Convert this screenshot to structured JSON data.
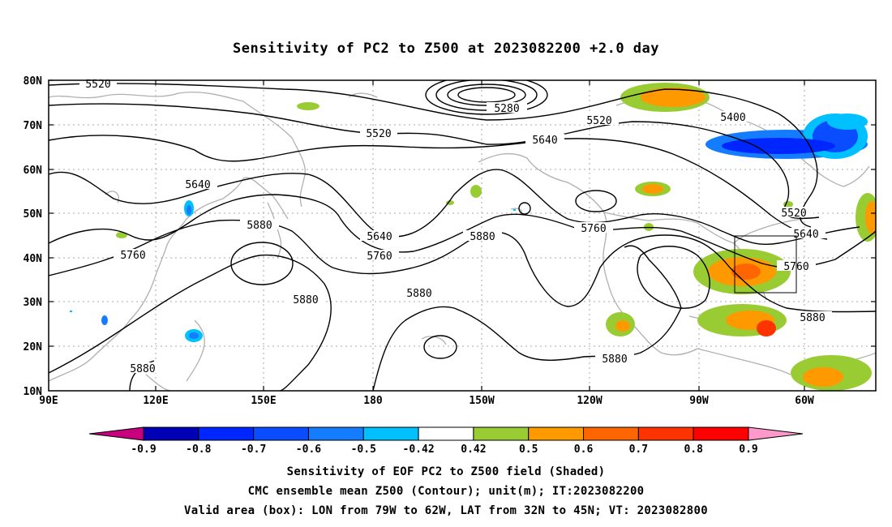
{
  "title": "Sensitivity of PC2 to Z500 at 2023082200 +2.0 day",
  "map": {
    "lat_ticks": [
      "80N",
      "70N",
      "60N",
      "50N",
      "40N",
      "30N",
      "20N",
      "10N"
    ],
    "lon_ticks": [
      "90E",
      "120E",
      "150E",
      "180",
      "150W",
      "120W",
      "90W",
      "60W"
    ],
    "lat_range": [
      10,
      80
    ],
    "lon_range_east": [
      90,
      322
    ],
    "box": {
      "lon": [
        -79,
        -62
      ],
      "lat": [
        32,
        45
      ]
    },
    "contour_labels": [
      "5520",
      "5280",
      "5520",
      "5520",
      "5400",
      "5640",
      "5640",
      "5880",
      "5640",
      "5760",
      "5880",
      "5760",
      "5520",
      "5640",
      "5760",
      "5760",
      "5880",
      "5880",
      "5880",
      "5880",
      "5880"
    ]
  },
  "colorbar": {
    "labels": [
      "-0.9",
      "-0.8",
      "-0.7",
      "-0.6",
      "-0.5",
      "-0.42",
      "0.42",
      "0.5",
      "0.6",
      "0.7",
      "0.8",
      "0.9"
    ],
    "colors": [
      "#c8007e",
      "#0000b4",
      "#0026ff",
      "#0a4cff",
      "#147dff",
      "#00c0ff",
      "#ffffff",
      "#99cc33",
      "#ff9900",
      "#ff6600",
      "#ff3300",
      "#ff0000",
      "#ff99cc"
    ]
  },
  "captions": [
    "Sensitivity of EOF PC2 to Z500 field (Shaded)",
    "CMC ensemble mean Z500 (Contour); unit(m); IT:2023082200",
    "Valid area (box): LON from 79W to 62W, LAT from 32N to 45N; VT: 2023082800"
  ]
}
